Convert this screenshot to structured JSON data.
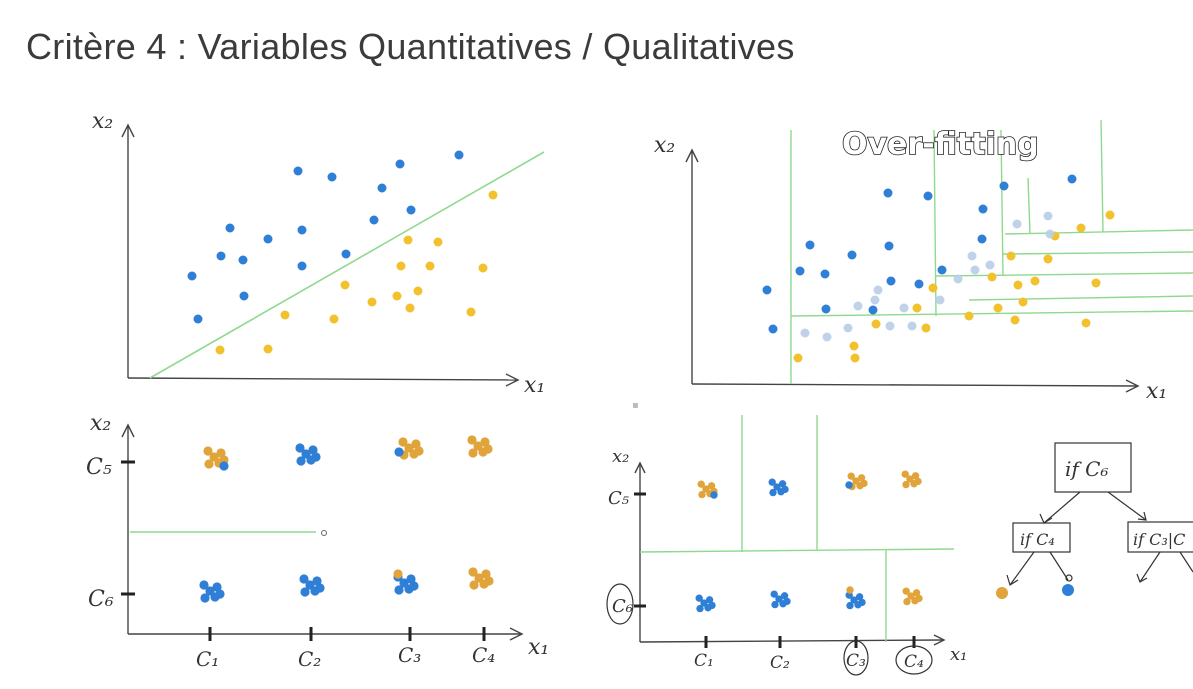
{
  "page_title": "Critère 4 : Variables Quantitatives / Qualitatives",
  "colors": {
    "blue": "#2f7fd6",
    "yellow": "#f2c12e",
    "gold": "#e0a43a",
    "green": "#8fd98f",
    "axis": "#444444"
  },
  "panels": {
    "top_left": {
      "x_label": "x₁",
      "y_label": "x₂"
    },
    "top_right": {
      "annotation": "Over-fitting",
      "x_label": "x₁",
      "y_label": "x₂"
    },
    "bottom_left": {
      "x_label": "x₁",
      "y_label": "x₂",
      "y_ticks": [
        "C₅",
        "C₆"
      ],
      "x_ticks": [
        "C₁",
        "C₂",
        "C₃",
        "C₄"
      ]
    },
    "bottom_right": {
      "x_label": "x₁",
      "y_label": "x₂",
      "y_ticks": [
        "C₅",
        "C₆"
      ],
      "x_ticks": [
        "C₁",
        "C₂",
        "C₃",
        "C₄"
      ]
    }
  },
  "tree": {
    "root": "if C₆",
    "left": "if C₄",
    "right": "if C₃|C"
  }
}
